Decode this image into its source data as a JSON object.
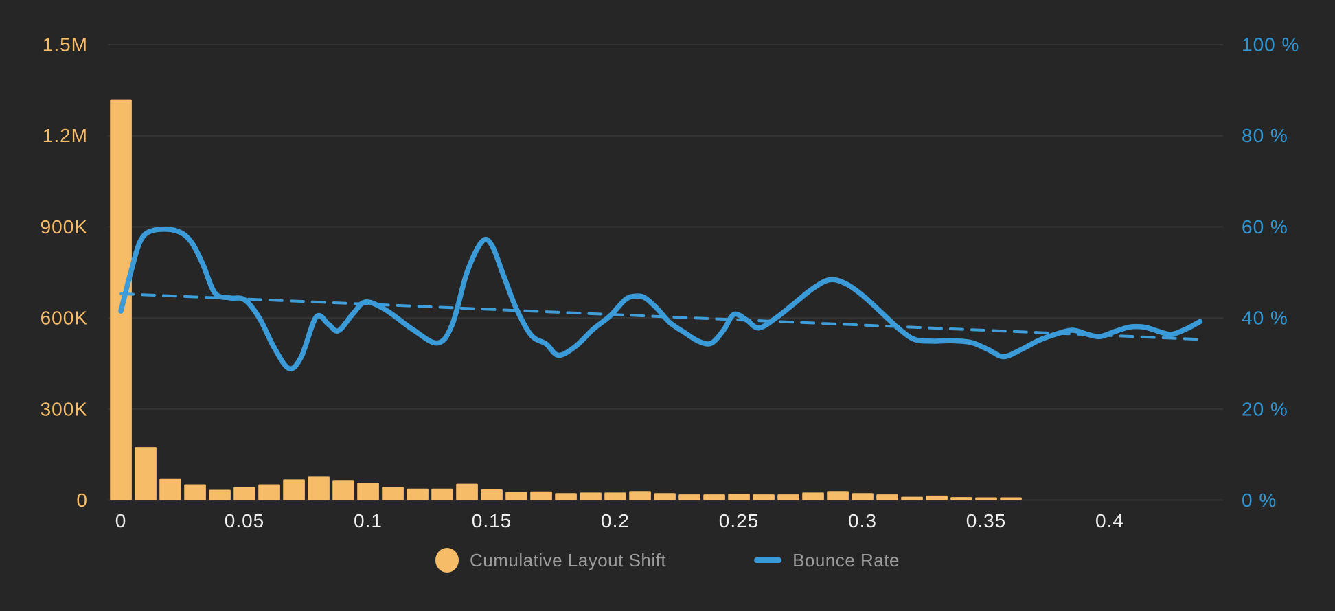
{
  "chart_data": {
    "type": "combo",
    "title": "",
    "background_color": "#262626",
    "grid": true,
    "grid_color": "#353535",
    "legend_position": "bottom-center",
    "x_axis": {
      "label": "",
      "min": 0,
      "max": 0.4866,
      "tick_values": [
        0,
        0.05,
        0.1,
        0.15,
        0.2,
        0.25,
        0.3,
        0.35,
        0.4
      ],
      "tick_labels": [
        "0",
        "0.05",
        "0.1",
        "0.15",
        "0.2",
        "0.25",
        "0.3",
        "0.35",
        "0.4"
      ],
      "color": "#f0f0f0"
    },
    "left_axis": {
      "label": "",
      "min": 0,
      "max": 1500000,
      "tick_labels": [
        "0",
        "300K",
        "600K",
        "900K",
        "1.2M",
        "1.5M"
      ],
      "color": "#f6bc67"
    },
    "right_axis": {
      "label": "",
      "min": 0,
      "max": 100,
      "tick_labels": [
        "0 %",
        "20 %",
        "40 %",
        "60 %",
        "80 %",
        "100 %"
      ],
      "color": "#2f96d3"
    },
    "series": [
      {
        "name": "Cumulative Layout Shift",
        "type": "bar",
        "axis": "left",
        "color": "#f6bc67",
        "bin_width": 0.0088,
        "x": [
          0,
          0.01,
          0.02,
          0.03,
          0.04,
          0.05,
          0.06,
          0.07,
          0.08,
          0.09,
          0.1,
          0.11,
          0.12,
          0.13,
          0.14,
          0.15,
          0.16,
          0.17,
          0.18,
          0.19,
          0.2,
          0.21,
          0.22,
          0.23,
          0.24,
          0.25,
          0.26,
          0.27,
          0.28,
          0.29,
          0.3,
          0.31,
          0.32,
          0.33,
          0.34,
          0.35,
          0.36
        ],
        "values": [
          1320000,
          175000,
          72000,
          52000,
          34000,
          43000,
          52000,
          68000,
          77000,
          66000,
          57000,
          44000,
          38000,
          38000,
          54000,
          35000,
          27000,
          29000,
          23000,
          25000,
          25000,
          30000,
          23000,
          19000,
          19000,
          20000,
          19000,
          19000,
          25000,
          30000,
          23000,
          19000,
          11000,
          15000,
          10000,
          9000,
          9000
        ]
      },
      {
        "name": "Bounce Rate",
        "type": "line",
        "axis": "right",
        "color": "#3a9bd8",
        "stroke_width": 7.5,
        "points": [
          [
            0.0,
            41.5
          ],
          [
            0.004,
            50.0
          ],
          [
            0.008,
            57.0
          ],
          [
            0.013,
            59.2
          ],
          [
            0.022,
            59.2
          ],
          [
            0.028,
            57.0
          ],
          [
            0.033,
            52.0
          ],
          [
            0.038,
            45.5
          ],
          [
            0.044,
            44.4
          ],
          [
            0.05,
            44.0
          ],
          [
            0.056,
            40.0
          ],
          [
            0.062,
            33.5
          ],
          [
            0.068,
            28.9
          ],
          [
            0.073,
            31.5
          ],
          [
            0.079,
            40.2
          ],
          [
            0.084,
            38.6
          ],
          [
            0.088,
            37.2
          ],
          [
            0.094,
            41.0
          ],
          [
            0.099,
            43.5
          ],
          [
            0.107,
            41.8
          ],
          [
            0.118,
            37.5
          ],
          [
            0.128,
            34.5
          ],
          [
            0.134,
            38.5
          ],
          [
            0.14,
            50.0
          ],
          [
            0.146,
            56.7
          ],
          [
            0.15,
            56.0
          ],
          [
            0.155,
            49.0
          ],
          [
            0.16,
            42.0
          ],
          [
            0.166,
            36.2
          ],
          [
            0.172,
            34.3
          ],
          [
            0.177,
            31.8
          ],
          [
            0.184,
            33.8
          ],
          [
            0.191,
            37.5
          ],
          [
            0.198,
            40.5
          ],
          [
            0.204,
            44.0
          ],
          [
            0.208,
            44.8
          ],
          [
            0.212,
            44.4
          ],
          [
            0.217,
            42.0
          ],
          [
            0.222,
            39.0
          ],
          [
            0.228,
            36.8
          ],
          [
            0.234,
            34.8
          ],
          [
            0.239,
            34.5
          ],
          [
            0.244,
            37.5
          ],
          [
            0.248,
            40.8
          ],
          [
            0.253,
            39.6
          ],
          [
            0.258,
            37.8
          ],
          [
            0.265,
            40.0
          ],
          [
            0.272,
            43.0
          ],
          [
            0.28,
            46.5
          ],
          [
            0.287,
            48.4
          ],
          [
            0.294,
            47.3
          ],
          [
            0.301,
            44.5
          ],
          [
            0.308,
            41.0
          ],
          [
            0.315,
            37.5
          ],
          [
            0.321,
            35.3
          ],
          [
            0.328,
            34.9
          ],
          [
            0.336,
            35.0
          ],
          [
            0.344,
            34.6
          ],
          [
            0.351,
            33.0
          ],
          [
            0.357,
            31.5
          ],
          [
            0.364,
            33.0
          ],
          [
            0.371,
            35.0
          ],
          [
            0.378,
            36.4
          ],
          [
            0.385,
            37.3
          ],
          [
            0.391,
            36.4
          ],
          [
            0.396,
            35.9
          ],
          [
            0.402,
            37.0
          ],
          [
            0.408,
            38.0
          ],
          [
            0.414,
            38.0
          ],
          [
            0.42,
            37.0
          ],
          [
            0.425,
            36.4
          ],
          [
            0.431,
            37.6
          ],
          [
            0.4365,
            39.2
          ]
        ]
      },
      {
        "name": "Bounce Rate trend",
        "type": "dashed-line",
        "axis": "right",
        "color": "#3f9ed9",
        "stroke_width": 4,
        "dash_pattern": "18 13",
        "points": [
          [
            0,
            45.3
          ],
          [
            0.4365,
            35.3
          ]
        ]
      }
    ],
    "legend": [
      {
        "label": "Cumulative Layout Shift",
        "marker": "dot",
        "color": "#f6bc67"
      },
      {
        "label": "Bounce Rate",
        "marker": "line",
        "color": "#3a9bd8"
      }
    ]
  }
}
